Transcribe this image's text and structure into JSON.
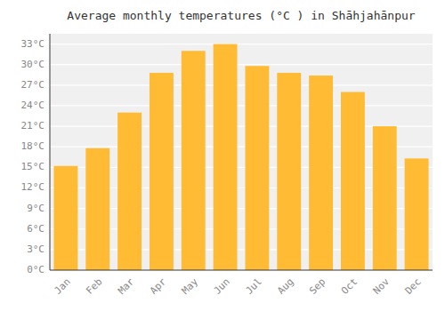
{
  "chart_data": {
    "type": "bar",
    "title": "Average monthly temperatures (°C ) in Shāhjahānpur",
    "categories": [
      "Jan",
      "Feb",
      "Mar",
      "Apr",
      "May",
      "Jun",
      "Jul",
      "Aug",
      "Sep",
      "Oct",
      "Nov",
      "Dec"
    ],
    "values": [
      15.2,
      17.8,
      23.0,
      28.8,
      32.0,
      33.0,
      29.8,
      28.8,
      28.4,
      26.0,
      21.0,
      16.3
    ],
    "color": "#FFBB33",
    "ylim": [
      0,
      34.5
    ],
    "yticks": [
      {
        "value": 0,
        "label": "0°C"
      },
      {
        "value": 3,
        "label": "3°C"
      },
      {
        "value": 6,
        "label": "6°C"
      },
      {
        "value": 9,
        "label": "9°C"
      },
      {
        "value": 12,
        "label": "12°C"
      },
      {
        "value": 15,
        "label": "15°C"
      },
      {
        "value": 18,
        "label": "18°C"
      },
      {
        "value": 21,
        "label": "21°C"
      },
      {
        "value": 24,
        "label": "24°C"
      },
      {
        "value": 27,
        "label": "27°C"
      },
      {
        "value": 30,
        "label": "30°C"
      },
      {
        "value": 33,
        "label": "33°C"
      }
    ],
    "grid": true
  }
}
